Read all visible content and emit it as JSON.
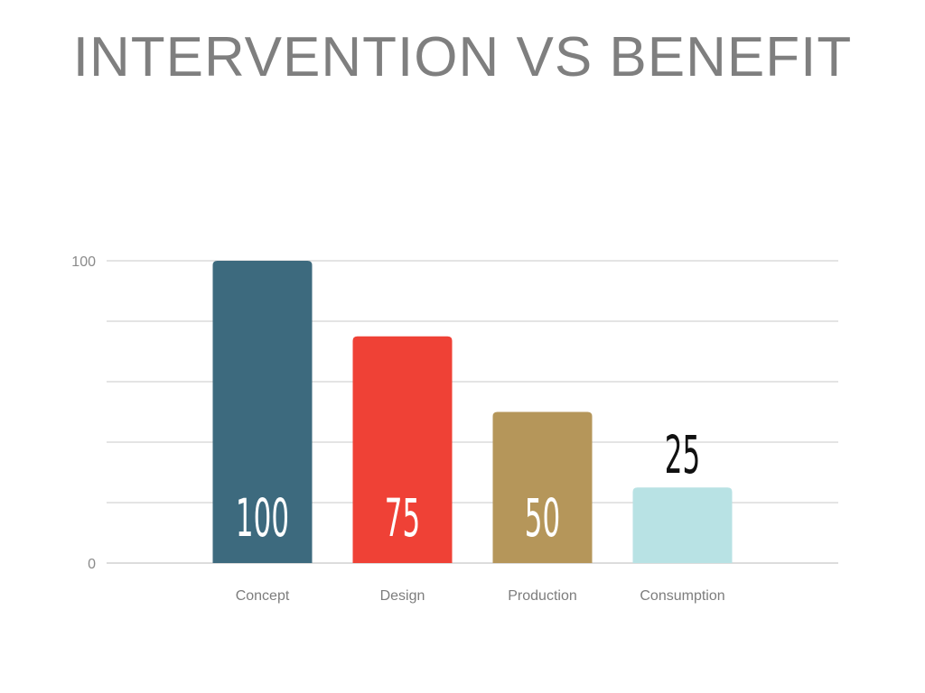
{
  "title": "INTERVENTION VS BENEFIT",
  "chart_data": {
    "type": "bar",
    "categories": [
      "Concept",
      "Design",
      "Production",
      "Consumption"
    ],
    "values": [
      100,
      75,
      50,
      25
    ],
    "value_labels": [
      "100",
      "75",
      "50",
      "25"
    ],
    "ylim": [
      0,
      100
    ],
    "yticks_labeled": [
      "0",
      "100"
    ],
    "gridline_count": 6,
    "grid": true,
    "colors": [
      "#3d6a7e",
      "#ef4136",
      "#b5965a",
      "#b8e2e4"
    ],
    "value_label_colors": [
      "#ffffff",
      "#ffffff",
      "#ffffff",
      "#111111"
    ],
    "value_label_placement": [
      "inside",
      "inside",
      "inside",
      "above"
    ],
    "xlabel": "",
    "ylabel": ""
  }
}
